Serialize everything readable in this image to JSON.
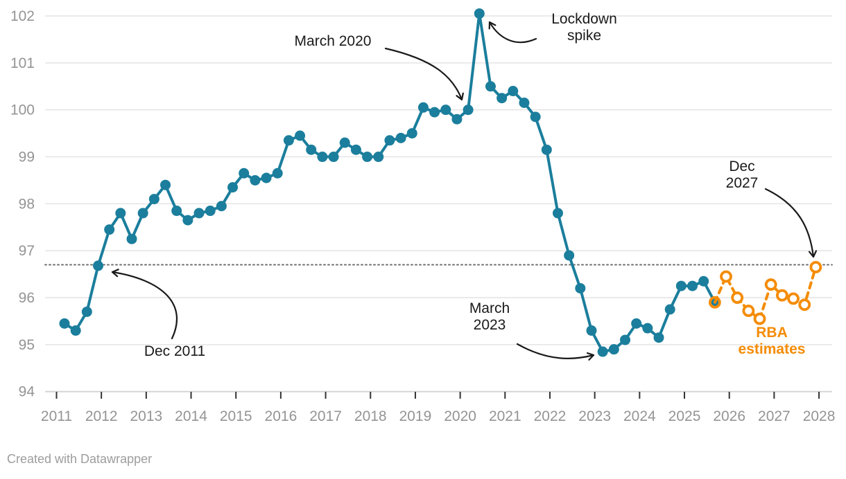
{
  "footer": {
    "credit": "Created with Datawrapper"
  },
  "annotations": {
    "march_2020": {
      "label": "March 2020"
    },
    "lockdown": {
      "line1": "Lockdown",
      "line2": "spike"
    },
    "dec_2011": {
      "label": "Dec 2011"
    },
    "march_2023": {
      "line1": "March",
      "line2": "2023"
    },
    "dec_2027": {
      "line1": "Dec",
      "line2": "2027"
    },
    "rba": {
      "line1": "RBA",
      "line2": "estimates"
    }
  },
  "chart_data": {
    "type": "line",
    "title": "",
    "xlabel": "",
    "ylabel": "",
    "ylim": [
      94,
      102
    ],
    "grid": "horizontal",
    "y_ticks": [
      94,
      95,
      96,
      97,
      98,
      99,
      100,
      101,
      102
    ],
    "x_years": [
      2011,
      2012,
      2013,
      2014,
      2015,
      2016,
      2017,
      2018,
      2019,
      2020,
      2021,
      2022,
      2023,
      2024,
      2025,
      2026,
      2027,
      2028
    ],
    "reference_line": {
      "value": 96.7,
      "style": "dotted",
      "color": "#6e6e6e"
    },
    "series": [
      {
        "name": "history",
        "color": "#1b7e9c",
        "style": "solid-filled-dots",
        "start_index": 0,
        "points": [
          {
            "date": "Mar 2011",
            "value": 95.45
          },
          {
            "date": "Jun 2011",
            "value": 95.3
          },
          {
            "date": "Sep 2011",
            "value": 95.7
          },
          {
            "date": "Dec 2011",
            "value": 96.68
          },
          {
            "date": "Mar 2012",
            "value": 97.45
          },
          {
            "date": "Jun 2012",
            "value": 97.8
          },
          {
            "date": "Sep 2012",
            "value": 97.25
          },
          {
            "date": "Dec 2012",
            "value": 97.8
          },
          {
            "date": "Mar 2013",
            "value": 98.1
          },
          {
            "date": "Jun 2013",
            "value": 98.4
          },
          {
            "date": "Sep 2013",
            "value": 97.85
          },
          {
            "date": "Dec 2013",
            "value": 97.65
          },
          {
            "date": "Mar 2014",
            "value": 97.8
          },
          {
            "date": "Jun 2014",
            "value": 97.85
          },
          {
            "date": "Sep 2014",
            "value": 97.95
          },
          {
            "date": "Dec 2014",
            "value": 98.35
          },
          {
            "date": "Mar 2015",
            "value": 98.65
          },
          {
            "date": "Jun 2015",
            "value": 98.5
          },
          {
            "date": "Sep 2015",
            "value": 98.55
          },
          {
            "date": "Dec 2015",
            "value": 98.65
          },
          {
            "date": "Mar 2016",
            "value": 99.35
          },
          {
            "date": "Jun 2016",
            "value": 99.45
          },
          {
            "date": "Sep 2016",
            "value": 99.15
          },
          {
            "date": "Dec 2016",
            "value": 99.0
          },
          {
            "date": "Mar 2017",
            "value": 99.0
          },
          {
            "date": "Jun 2017",
            "value": 99.3
          },
          {
            "date": "Sep 2017",
            "value": 99.15
          },
          {
            "date": "Dec 2017",
            "value": 99.0
          },
          {
            "date": "Mar 2018",
            "value": 99.0
          },
          {
            "date": "Jun 2018",
            "value": 99.35
          },
          {
            "date": "Sep 2018",
            "value": 99.4
          },
          {
            "date": "Dec 2018",
            "value": 99.5
          },
          {
            "date": "Mar 2019",
            "value": 100.05
          },
          {
            "date": "Jun 2019",
            "value": 99.95
          },
          {
            "date": "Sep 2019",
            "value": 100.0
          },
          {
            "date": "Dec 2019",
            "value": 99.8
          },
          {
            "date": "Mar 2020",
            "value": 100.0
          },
          {
            "date": "Jun 2020",
            "value": 102.05
          },
          {
            "date": "Sep 2020",
            "value": 100.5
          },
          {
            "date": "Dec 2020",
            "value": 100.25
          },
          {
            "date": "Mar 2021",
            "value": 100.4
          },
          {
            "date": "Jun 2021",
            "value": 100.15
          },
          {
            "date": "Sep 2021",
            "value": 99.85
          },
          {
            "date": "Dec 2021",
            "value": 99.15
          },
          {
            "date": "Mar 2022",
            "value": 97.8
          },
          {
            "date": "Jun 2022",
            "value": 96.9
          },
          {
            "date": "Sep 2022",
            "value": 96.2
          },
          {
            "date": "Dec 2022",
            "value": 95.3
          },
          {
            "date": "Mar 2023",
            "value": 94.85
          },
          {
            "date": "Jun 2023",
            "value": 94.9
          },
          {
            "date": "Sep 2023",
            "value": 95.1
          },
          {
            "date": "Dec 2023",
            "value": 95.45
          },
          {
            "date": "Mar 2024",
            "value": 95.35
          },
          {
            "date": "Jun 2024",
            "value": 95.15
          },
          {
            "date": "Sep 2024",
            "value": 95.75
          },
          {
            "date": "Dec 2024",
            "value": 96.25
          },
          {
            "date": "Mar 2025",
            "value": 96.25
          },
          {
            "date": "Jun 2025",
            "value": 96.35
          },
          {
            "date": "Sep 2025",
            "value": 95.9
          }
        ]
      },
      {
        "name": "RBA estimates",
        "color": "#f48c06",
        "style": "dashed-open-circles",
        "start_index": 58,
        "points": [
          {
            "date": "Sep 2025",
            "value": 95.9
          },
          {
            "date": "Dec 2025",
            "value": 96.45
          },
          {
            "date": "Mar 2026",
            "value": 96.0
          },
          {
            "date": "Jun 2026",
            "value": 95.72
          },
          {
            "date": "Sep 2026",
            "value": 95.55
          },
          {
            "date": "Dec 2026",
            "value": 96.28
          },
          {
            "date": "Mar 2027",
            "value": 96.05
          },
          {
            "date": "Jun 2027",
            "value": 95.98
          },
          {
            "date": "Sep 2027",
            "value": 95.85
          },
          {
            "date": "Dec 2027",
            "value": 96.65
          }
        ]
      }
    ],
    "legend_position": "annotation-on-chart"
  }
}
